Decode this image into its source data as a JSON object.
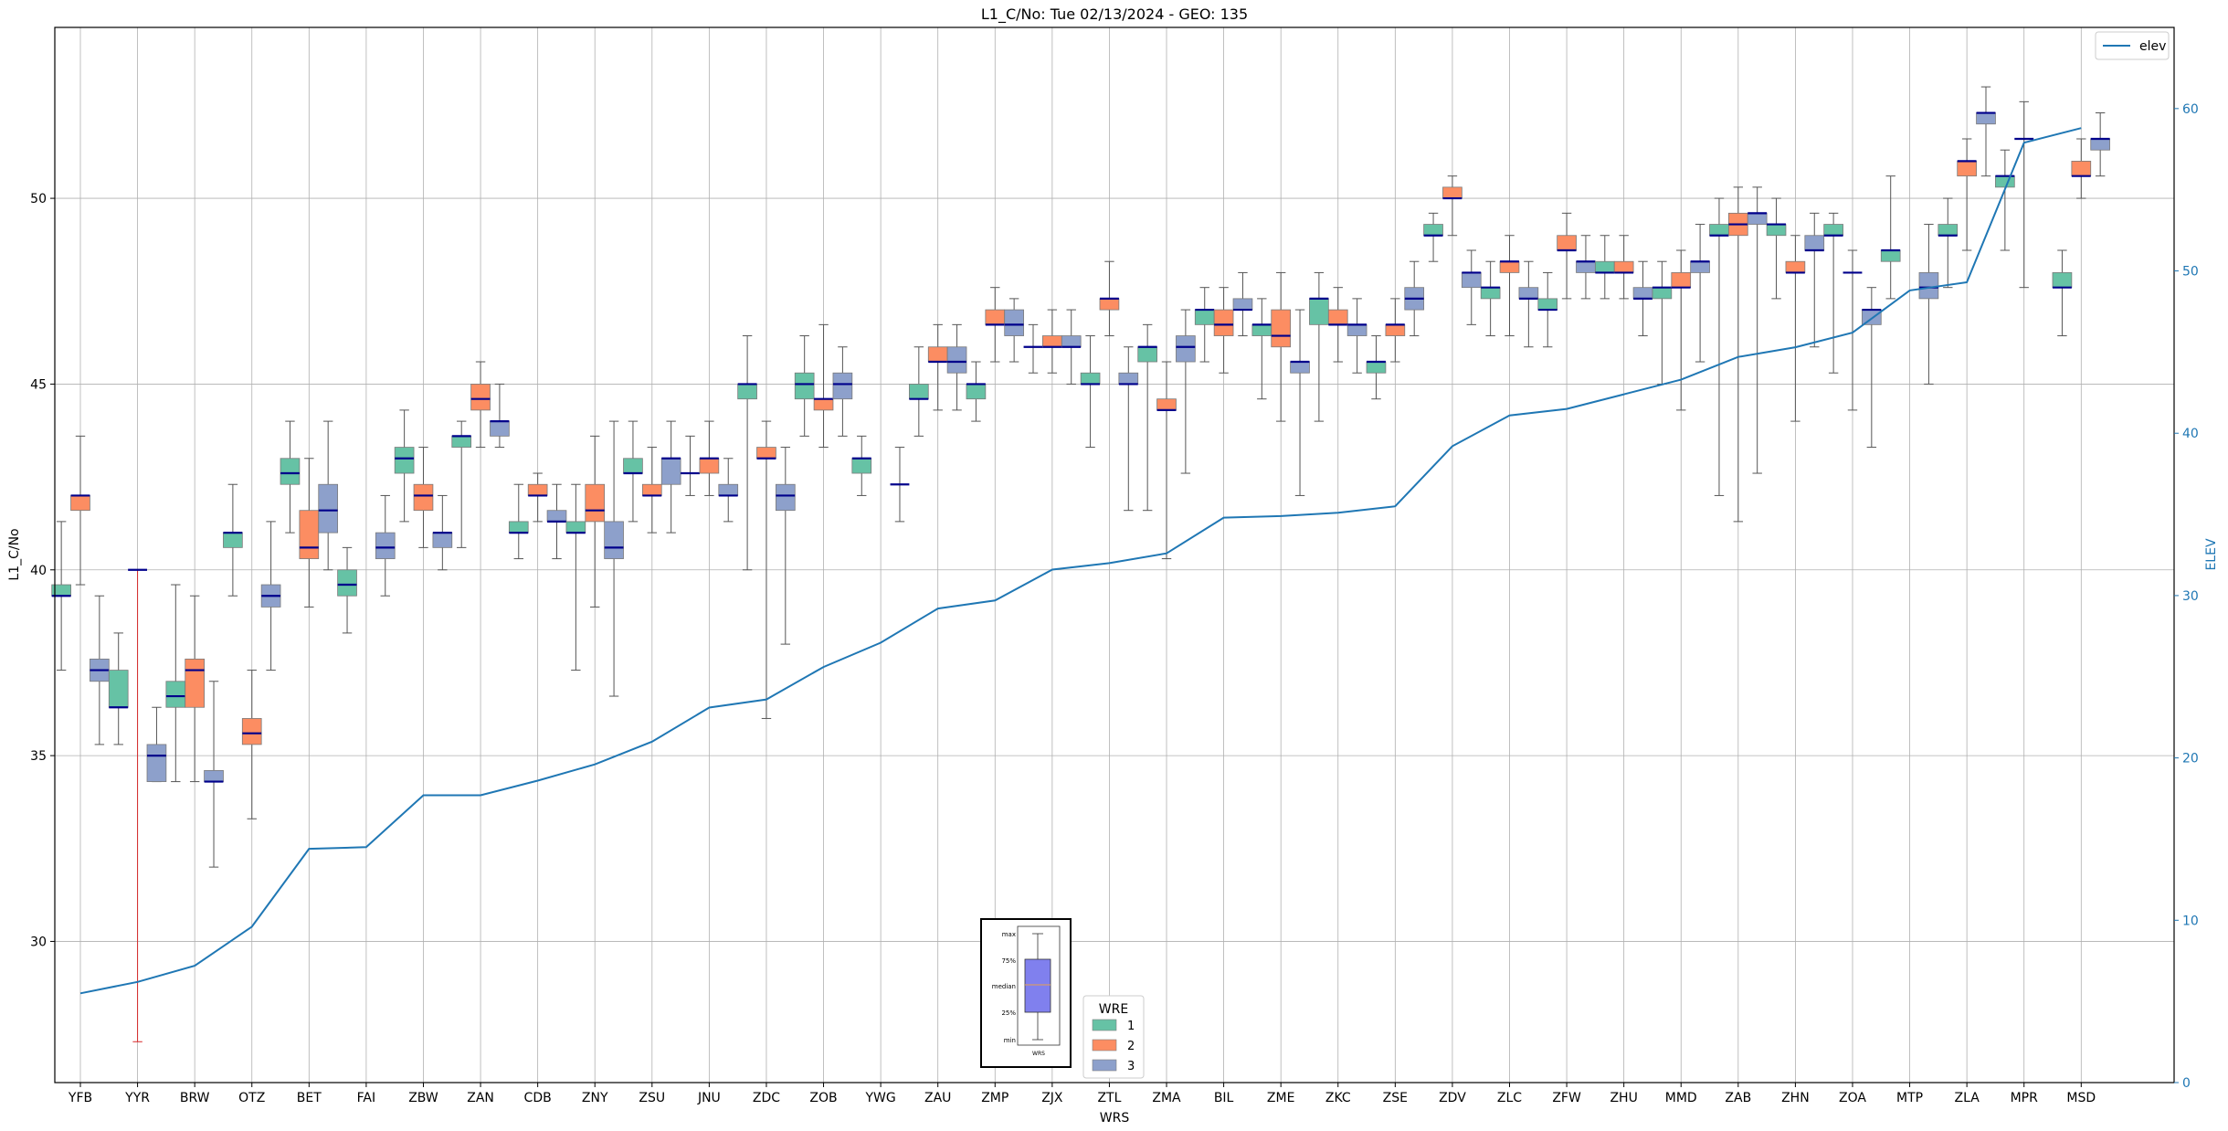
{
  "chart_data": {
    "type": "box",
    "title": "L1_C/No: Tue 02/13/2024 - GEO: 135",
    "xlabel": "WRS",
    "ylabel": "L1_C/No",
    "ylabel_right": "ELEV",
    "ylim": [
      26.2,
      54.6
    ],
    "ylim_right": [
      0,
      65
    ],
    "yticks": [
      30,
      35,
      40,
      45,
      50
    ],
    "yticks_right": [
      0,
      10,
      20,
      30,
      40,
      50,
      60
    ],
    "grid": true,
    "line_legend": {
      "label": "elev",
      "position": "top-right"
    },
    "box_legend": {
      "title": "WRE",
      "entries": [
        "1",
        "2",
        "3"
      ],
      "position": "bottom-center"
    },
    "inset_labels": {
      "max": "max",
      "p75": "75%",
      "median": "median",
      "p25": "25%",
      "min": "min",
      "x": "WRS"
    },
    "categories": [
      "YFB",
      "YYR",
      "BRW",
      "OTZ",
      "BET",
      "FAI",
      "ZBW",
      "ZAN",
      "CDB",
      "ZNY",
      "ZSU",
      "JNU",
      "ZDC",
      "ZOB",
      "YWG",
      "ZAU",
      "ZMP",
      "ZJX",
      "ZTL",
      "ZMA",
      "BIL",
      "ZME",
      "ZKC",
      "ZSE",
      "ZDV",
      "ZLC",
      "ZFW",
      "ZHU",
      "MMD",
      "ZAB",
      "ZHN",
      "ZOA",
      "MTP",
      "ZLA",
      "MPR",
      "MSD"
    ],
    "elev": [
      5.5,
      6.2,
      7.2,
      9.6,
      14.4,
      14.5,
      17.7,
      17.7,
      18.6,
      19.6,
      21.0,
      23.1,
      23.6,
      25.6,
      27.1,
      29.2,
      29.7,
      31.6,
      32.0,
      32.6,
      34.8,
      34.9,
      35.1,
      35.5,
      39.2,
      41.1,
      41.5,
      42.4,
      43.3,
      44.7,
      45.3,
      46.2,
      48.8,
      49.3,
      57.9,
      58.8
    ],
    "series": [
      {
        "name": "1",
        "color": "#66c2a5",
        "boxes": {
          "YFB": {
            "min": 37.3,
            "q1": 39.3,
            "median": 39.3,
            "q3": 39.6,
            "max": 41.3
          },
          "YYR": {
            "min": 35.3,
            "q1": 36.3,
            "median": 36.3,
            "q3": 37.3,
            "max": 38.3
          },
          "BRW": {
            "min": 34.3,
            "q1": 36.3,
            "median": 36.6,
            "q3": 37.0,
            "max": 39.6
          },
          "OTZ": {
            "min": 39.3,
            "q1": 40.6,
            "median": 41.0,
            "q3": 41.0,
            "max": 42.3
          },
          "BET": {
            "min": 41.0,
            "q1": 42.3,
            "median": 42.6,
            "q3": 43.0,
            "max": 44.0
          },
          "FAI": {
            "min": 38.3,
            "q1": 39.3,
            "median": 39.6,
            "q3": 40.0,
            "max": 40.6
          },
          "ZBW": {
            "min": 41.3,
            "q1": 42.6,
            "median": 43.0,
            "q3": 43.3,
            "max": 44.3
          },
          "ZAN": {
            "min": 40.6,
            "q1": 43.3,
            "median": 43.6,
            "q3": 43.6,
            "max": 44.0
          },
          "CDB": {
            "min": 40.3,
            "q1": 41.0,
            "median": 41.0,
            "q3": 41.3,
            "max": 42.3
          },
          "ZNY": {
            "min": 37.3,
            "q1": 41.0,
            "median": 41.0,
            "q3": 41.3,
            "max": 42.3
          },
          "ZSU": {
            "min": 41.3,
            "q1": 42.6,
            "median": 42.6,
            "q3": 43.0,
            "max": 44.0
          },
          "JNU": {
            "min": 42.0,
            "q1": 42.6,
            "median": 42.6,
            "q3": 42.6,
            "max": 43.6
          },
          "ZDC": {
            "min": 40.0,
            "q1": 44.6,
            "median": 45.0,
            "q3": 45.0,
            "max": 46.3
          },
          "ZOB": {
            "min": 43.6,
            "q1": 44.6,
            "median": 45.0,
            "q3": 45.3,
            "max": 46.3
          },
          "YWG": {
            "min": 42.0,
            "q1": 42.6,
            "median": 43.0,
            "q3": 43.0,
            "max": 43.6
          },
          "ZAU": {
            "min": 43.6,
            "q1": 44.6,
            "median": 44.6,
            "q3": 45.0,
            "max": 46.0
          },
          "ZMP": {
            "min": 44.0,
            "q1": 44.6,
            "median": 45.0,
            "q3": 45.0,
            "max": 45.6
          },
          "ZJX": {
            "min": 45.3,
            "q1": 46.0,
            "median": 46.0,
            "q3": 46.0,
            "max": 46.6
          },
          "ZTL": {
            "min": 43.3,
            "q1": 45.0,
            "median": 45.0,
            "q3": 45.3,
            "max": 46.3
          },
          "ZMA": {
            "min": 41.6,
            "q1": 45.6,
            "median": 46.0,
            "q3": 46.0,
            "max": 46.6
          },
          "BIL": {
            "min": 45.6,
            "q1": 46.6,
            "median": 47.0,
            "q3": 47.0,
            "max": 47.6
          },
          "ZME": {
            "min": 44.6,
            "q1": 46.3,
            "median": 46.6,
            "q3": 46.6,
            "max": 47.3
          },
          "ZKC": {
            "min": 44.0,
            "q1": 46.6,
            "median": 47.3,
            "q3": 47.3,
            "max": 48.0
          },
          "ZSE": {
            "min": 44.6,
            "q1": 45.3,
            "median": 45.6,
            "q3": 45.6,
            "max": 46.3
          },
          "ZDV": {
            "min": 48.3,
            "q1": 49.0,
            "median": 49.0,
            "q3": 49.3,
            "max": 49.6
          },
          "ZLC": {
            "min": 46.3,
            "q1": 47.3,
            "median": 47.6,
            "q3": 47.6,
            "max": 48.3
          },
          "ZFW": {
            "min": 46.0,
            "q1": 47.0,
            "median": 47.0,
            "q3": 47.3,
            "max": 48.0
          },
          "ZHU": {
            "min": 47.3,
            "q1": 48.0,
            "median": 48.0,
            "q3": 48.3,
            "max": 49.0
          },
          "MMD": {
            "min": 45.0,
            "q1": 47.3,
            "median": 47.6,
            "q3": 47.6,
            "max": 48.3
          },
          "ZAB": {
            "min": 42.0,
            "q1": 49.0,
            "median": 49.0,
            "q3": 49.3,
            "max": 50.0
          },
          "ZHN": {
            "min": 47.3,
            "q1": 49.0,
            "median": 49.3,
            "q3": 49.3,
            "max": 50.0
          },
          "ZOA": {
            "min": 45.3,
            "q1": 49.0,
            "median": 49.0,
            "q3": 49.3,
            "max": 49.6
          },
          "MTP": {
            "min": 47.3,
            "q1": 48.3,
            "median": 48.6,
            "q3": 48.6,
            "max": 50.6
          },
          "ZLA": {
            "min": 47.6,
            "q1": 49.0,
            "median": 49.0,
            "q3": 49.3,
            "max": 50.0
          },
          "MPR": {
            "min": 48.6,
            "q1": 50.3,
            "median": 50.6,
            "q3": 50.6,
            "max": 51.3
          },
          "MSD": {
            "min": 46.3,
            "q1": 47.6,
            "median": 47.6,
            "q3": 48.0,
            "max": 48.6
          }
        }
      },
      {
        "name": "2",
        "color": "#fc8d62",
        "boxes": {
          "YFB": {
            "min": 39.6,
            "q1": 41.6,
            "median": 42.0,
            "q3": 42.0,
            "max": 43.6
          },
          "YYR": {
            "min": 27.3,
            "q1": 40.0,
            "median": 40.0,
            "q3": 40.0,
            "max": 40.0
          },
          "BRW": {
            "min": 34.3,
            "q1": 36.3,
            "median": 37.3,
            "q3": 37.6,
            "max": 39.3
          },
          "OTZ": {
            "min": 33.3,
            "q1": 35.3,
            "median": 35.6,
            "q3": 36.0,
            "max": 37.3
          },
          "BET": {
            "min": 39.0,
            "q1": 40.3,
            "median": 40.6,
            "q3": 41.6,
            "max": 43.0
          },
          "ZBW": {
            "min": 40.6,
            "q1": 41.6,
            "median": 42.0,
            "q3": 42.3,
            "max": 43.3
          },
          "ZAN": {
            "min": 43.3,
            "q1": 44.3,
            "median": 44.6,
            "q3": 45.0,
            "max": 45.6
          },
          "CDB": {
            "min": 41.3,
            "q1": 42.0,
            "median": 42.0,
            "q3": 42.3,
            "max": 42.6
          },
          "ZNY": {
            "min": 39.0,
            "q1": 41.3,
            "median": 41.6,
            "q3": 42.3,
            "max": 43.6
          },
          "ZSU": {
            "min": 41.0,
            "q1": 42.0,
            "median": 42.0,
            "q3": 42.3,
            "max": 43.3
          },
          "JNU": {
            "min": 42.0,
            "q1": 42.6,
            "median": 43.0,
            "q3": 43.0,
            "max": 44.0
          },
          "ZDC": {
            "min": 36.0,
            "q1": 43.0,
            "median": 43.0,
            "q3": 43.3,
            "max": 44.0
          },
          "ZOB": {
            "min": 43.3,
            "q1": 44.3,
            "median": 44.6,
            "q3": 44.6,
            "max": 46.6
          },
          "ZAU": {
            "min": 44.3,
            "q1": 45.6,
            "median": 45.6,
            "q3": 46.0,
            "max": 46.6
          },
          "ZMP": {
            "min": 45.6,
            "q1": 46.6,
            "median": 46.6,
            "q3": 47.0,
            "max": 47.6
          },
          "ZJX": {
            "min": 45.3,
            "q1": 46.0,
            "median": 46.0,
            "q3": 46.3,
            "max": 47.0
          },
          "ZTL": {
            "min": 46.3,
            "q1": 47.0,
            "median": 47.3,
            "q3": 47.3,
            "max": 48.3
          },
          "ZMA": {
            "min": 40.3,
            "q1": 44.3,
            "median": 44.3,
            "q3": 44.6,
            "max": 45.6
          },
          "BIL": {
            "min": 45.3,
            "q1": 46.3,
            "median": 46.6,
            "q3": 47.0,
            "max": 47.6
          },
          "ZME": {
            "min": 44.0,
            "q1": 46.0,
            "median": 46.3,
            "q3": 47.0,
            "max": 48.0
          },
          "ZKC": {
            "min": 45.6,
            "q1": 46.6,
            "median": 46.6,
            "q3": 47.0,
            "max": 47.6
          },
          "ZSE": {
            "min": 45.6,
            "q1": 46.3,
            "median": 46.6,
            "q3": 46.6,
            "max": 47.3
          },
          "ZDV": {
            "min": 49.0,
            "q1": 50.0,
            "median": 50.0,
            "q3": 50.3,
            "max": 50.6
          },
          "ZLC": {
            "min": 46.3,
            "q1": 48.0,
            "median": 48.3,
            "q3": 48.3,
            "max": 49.0
          },
          "ZFW": {
            "min": 47.3,
            "q1": 48.6,
            "median": 48.6,
            "q3": 49.0,
            "max": 49.6
          },
          "ZHU": {
            "min": 47.3,
            "q1": 48.0,
            "median": 48.0,
            "q3": 48.3,
            "max": 49.0
          },
          "MMD": {
            "min": 44.3,
            "q1": 47.6,
            "median": 47.6,
            "q3": 48.0,
            "max": 48.6
          },
          "ZAB": {
            "min": 41.3,
            "q1": 49.0,
            "median": 49.3,
            "q3": 49.6,
            "max": 50.3
          },
          "ZHN": {
            "min": 44.0,
            "q1": 48.0,
            "median": 48.0,
            "q3": 48.3,
            "max": 49.0
          },
          "ZOA": {
            "min": 44.3,
            "q1": 48.0,
            "median": 48.0,
            "q3": 48.0,
            "max": 48.6
          },
          "ZLA": {
            "min": 48.6,
            "q1": 50.6,
            "median": 51.0,
            "q3": 51.0,
            "max": 51.6
          },
          "MPR": {
            "min": 47.6,
            "q1": 51.6,
            "median": 51.6,
            "q3": 51.6,
            "max": 52.6
          },
          "MSD": {
            "min": 50.0,
            "q1": 50.6,
            "median": 50.6,
            "q3": 51.0,
            "max": 51.6
          }
        }
      },
      {
        "name": "3",
        "color": "#8da0cb",
        "boxes": {
          "YFB": {
            "min": 35.3,
            "q1": 37.0,
            "median": 37.3,
            "q3": 37.6,
            "max": 39.3
          },
          "YYR": {
            "min": 34.3,
            "q1": 34.3,
            "median": 35.0,
            "q3": 35.3,
            "max": 36.3
          },
          "BRW": {
            "min": 32.0,
            "q1": 34.3,
            "median": 34.3,
            "q3": 34.6,
            "max": 37.0
          },
          "OTZ": {
            "min": 37.3,
            "q1": 39.0,
            "median": 39.3,
            "q3": 39.6,
            "max": 41.3
          },
          "BET": {
            "min": 40.0,
            "q1": 41.0,
            "median": 41.6,
            "q3": 42.3,
            "max": 44.0
          },
          "FAI": {
            "min": 39.3,
            "q1": 40.3,
            "median": 40.6,
            "q3": 41.0,
            "max": 42.0
          },
          "ZBW": {
            "min": 40.0,
            "q1": 40.6,
            "median": 41.0,
            "q3": 41.0,
            "max": 42.0
          },
          "ZAN": {
            "min": 43.3,
            "q1": 43.6,
            "median": 44.0,
            "q3": 44.0,
            "max": 45.0
          },
          "CDB": {
            "min": 40.3,
            "q1": 41.3,
            "median": 41.3,
            "q3": 41.6,
            "max": 42.3
          },
          "ZNY": {
            "min": 36.6,
            "q1": 40.3,
            "median": 40.6,
            "q3": 41.3,
            "max": 44.0
          },
          "ZSU": {
            "min": 41.0,
            "q1": 42.3,
            "median": 43.0,
            "q3": 43.0,
            "max": 44.0
          },
          "JNU": {
            "min": 41.3,
            "q1": 42.0,
            "median": 42.0,
            "q3": 42.3,
            "max": 43.0
          },
          "ZDC": {
            "min": 38.0,
            "q1": 41.6,
            "median": 42.0,
            "q3": 42.3,
            "max": 43.3
          },
          "ZOB": {
            "min": 43.6,
            "q1": 44.6,
            "median": 45.0,
            "q3": 45.3,
            "max": 46.0
          },
          "YWG": {
            "min": 41.3,
            "q1": 42.3,
            "median": 42.3,
            "q3": 42.3,
            "max": 43.3
          },
          "ZAU": {
            "min": 44.3,
            "q1": 45.3,
            "median": 45.6,
            "q3": 46.0,
            "max": 46.6
          },
          "ZMP": {
            "min": 45.6,
            "q1": 46.3,
            "median": 46.6,
            "q3": 47.0,
            "max": 47.3
          },
          "ZJX": {
            "min": 45.0,
            "q1": 46.0,
            "median": 46.0,
            "q3": 46.3,
            "max": 47.0
          },
          "ZTL": {
            "min": 41.6,
            "q1": 45.0,
            "median": 45.0,
            "q3": 45.3,
            "max": 46.0
          },
          "ZMA": {
            "min": 42.6,
            "q1": 45.6,
            "median": 46.0,
            "q3": 46.3,
            "max": 47.0
          },
          "BIL": {
            "min": 46.3,
            "q1": 47.0,
            "median": 47.0,
            "q3": 47.3,
            "max": 48.0
          },
          "ZME": {
            "min": 42.0,
            "q1": 45.3,
            "median": 45.6,
            "q3": 45.6,
            "max": 47.0
          },
          "ZKC": {
            "min": 45.3,
            "q1": 46.3,
            "median": 46.6,
            "q3": 46.6,
            "max": 47.3
          },
          "ZSE": {
            "min": 46.3,
            "q1": 47.0,
            "median": 47.3,
            "q3": 47.6,
            "max": 48.3
          },
          "ZDV": {
            "min": 46.6,
            "q1": 47.6,
            "median": 48.0,
            "q3": 48.0,
            "max": 48.6
          },
          "ZLC": {
            "min": 46.0,
            "q1": 47.3,
            "median": 47.3,
            "q3": 47.6,
            "max": 48.3
          },
          "ZFW": {
            "min": 47.3,
            "q1": 48.0,
            "median": 48.3,
            "q3": 48.3,
            "max": 49.0
          },
          "ZHU": {
            "min": 46.3,
            "q1": 47.3,
            "median": 47.3,
            "q3": 47.6,
            "max": 48.3
          },
          "MMD": {
            "min": 45.6,
            "q1": 48.0,
            "median": 48.3,
            "q3": 48.3,
            "max": 49.3
          },
          "ZAB": {
            "min": 42.6,
            "q1": 49.3,
            "median": 49.6,
            "q3": 49.6,
            "max": 50.3
          },
          "ZHN": {
            "min": 46.0,
            "q1": 48.6,
            "median": 48.6,
            "q3": 49.0,
            "max": 49.6
          },
          "ZOA": {
            "min": 43.3,
            "q1": 46.6,
            "median": 47.0,
            "q3": 47.0,
            "max": 47.6
          },
          "MTP": {
            "min": 45.0,
            "q1": 47.3,
            "median": 47.6,
            "q3": 48.0,
            "max": 49.3
          },
          "ZLA": {
            "min": 50.6,
            "q1": 52.0,
            "median": 52.3,
            "q3": 52.3,
            "max": 53.0
          },
          "MSD": {
            "min": 50.6,
            "q1": 51.3,
            "median": 51.6,
            "q3": 51.6,
            "max": 52.3
          }
        }
      }
    ]
  }
}
